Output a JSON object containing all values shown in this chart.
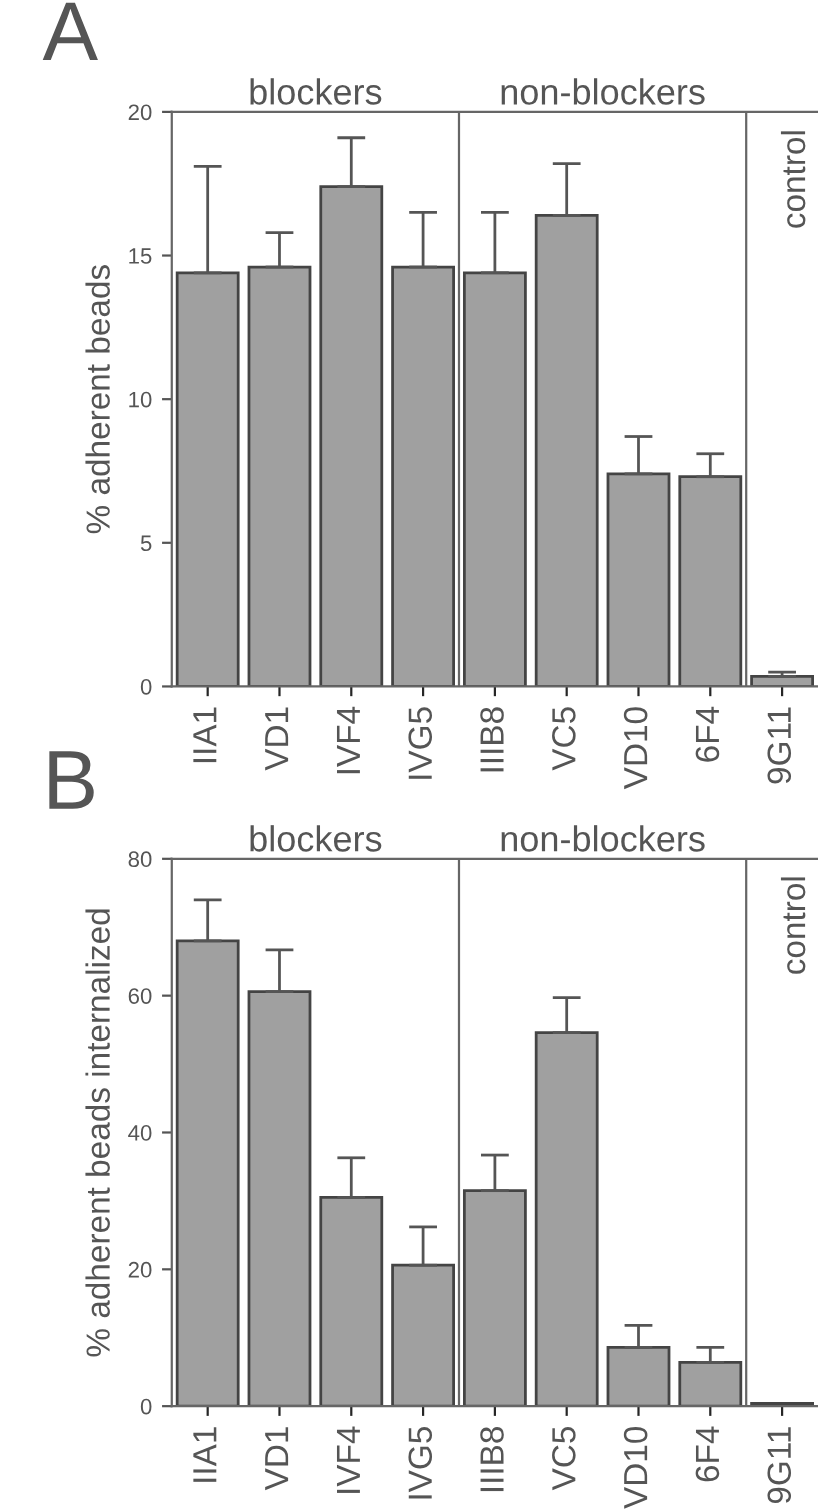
{
  "chart_data": [
    {
      "type": "bar",
      "ylabel": "% adherent beads",
      "categories": [
        "IIA1",
        "VD1",
        "IVF4",
        "IVG5",
        "IIIB8",
        "VC5",
        "VD10",
        "6F4",
        "9G11"
      ],
      "values": [
        14.4,
        14.6,
        17.4,
        14.6,
        14.4,
        16.4,
        7.4,
        7.3,
        0.35
      ],
      "errors": [
        [
          14.4,
          18.1
        ],
        [
          14.6,
          15.8
        ],
        [
          17.4,
          19.1
        ],
        [
          14.6,
          16.5
        ],
        [
          14.4,
          16.5
        ],
        [
          16.4,
          18.2
        ],
        [
          7.4,
          8.7
        ],
        [
          7.3,
          8.1
        ],
        [
          0.35,
          0.5
        ]
      ],
      "color": "#a0a0a0",
      "ylim": [
        0,
        20
      ],
      "yticks": [
        0,
        5,
        10,
        15,
        20
      ],
      "grid": false,
      "legend": false,
      "annotations": [
        "A",
        "blockers",
        "non-blockers",
        "control"
      ]
    },
    {
      "type": "bar",
      "ylabel": "% adherent beads internalized",
      "categories": [
        "IIA1",
        "VD1",
        "IVF4",
        "IVG5",
        "IIIB8",
        "VC5",
        "VD10",
        "6F4",
        "9G11"
      ],
      "values": [
        68,
        60.6,
        30.5,
        20.6,
        31.5,
        54.6,
        8.6,
        6.4,
        0.4
      ],
      "errors": [
        [
          68,
          74
        ],
        [
          60.6,
          66.7
        ],
        [
          30.5,
          36.3
        ],
        [
          20.6,
          26.2
        ],
        [
          31.5,
          36.7
        ],
        [
          54.6,
          59.7
        ],
        [
          8.6,
          11.8
        ],
        [
          6.4,
          8.6
        ],
        null
      ],
      "color": "#a0a0a0",
      "ylim": [
        0,
        80
      ],
      "yticks": [
        0,
        20,
        40,
        60,
        80
      ],
      "grid": false,
      "legend": false,
      "annotations": [
        "B",
        "blockers",
        "non-blockers",
        "control"
      ]
    }
  ]
}
